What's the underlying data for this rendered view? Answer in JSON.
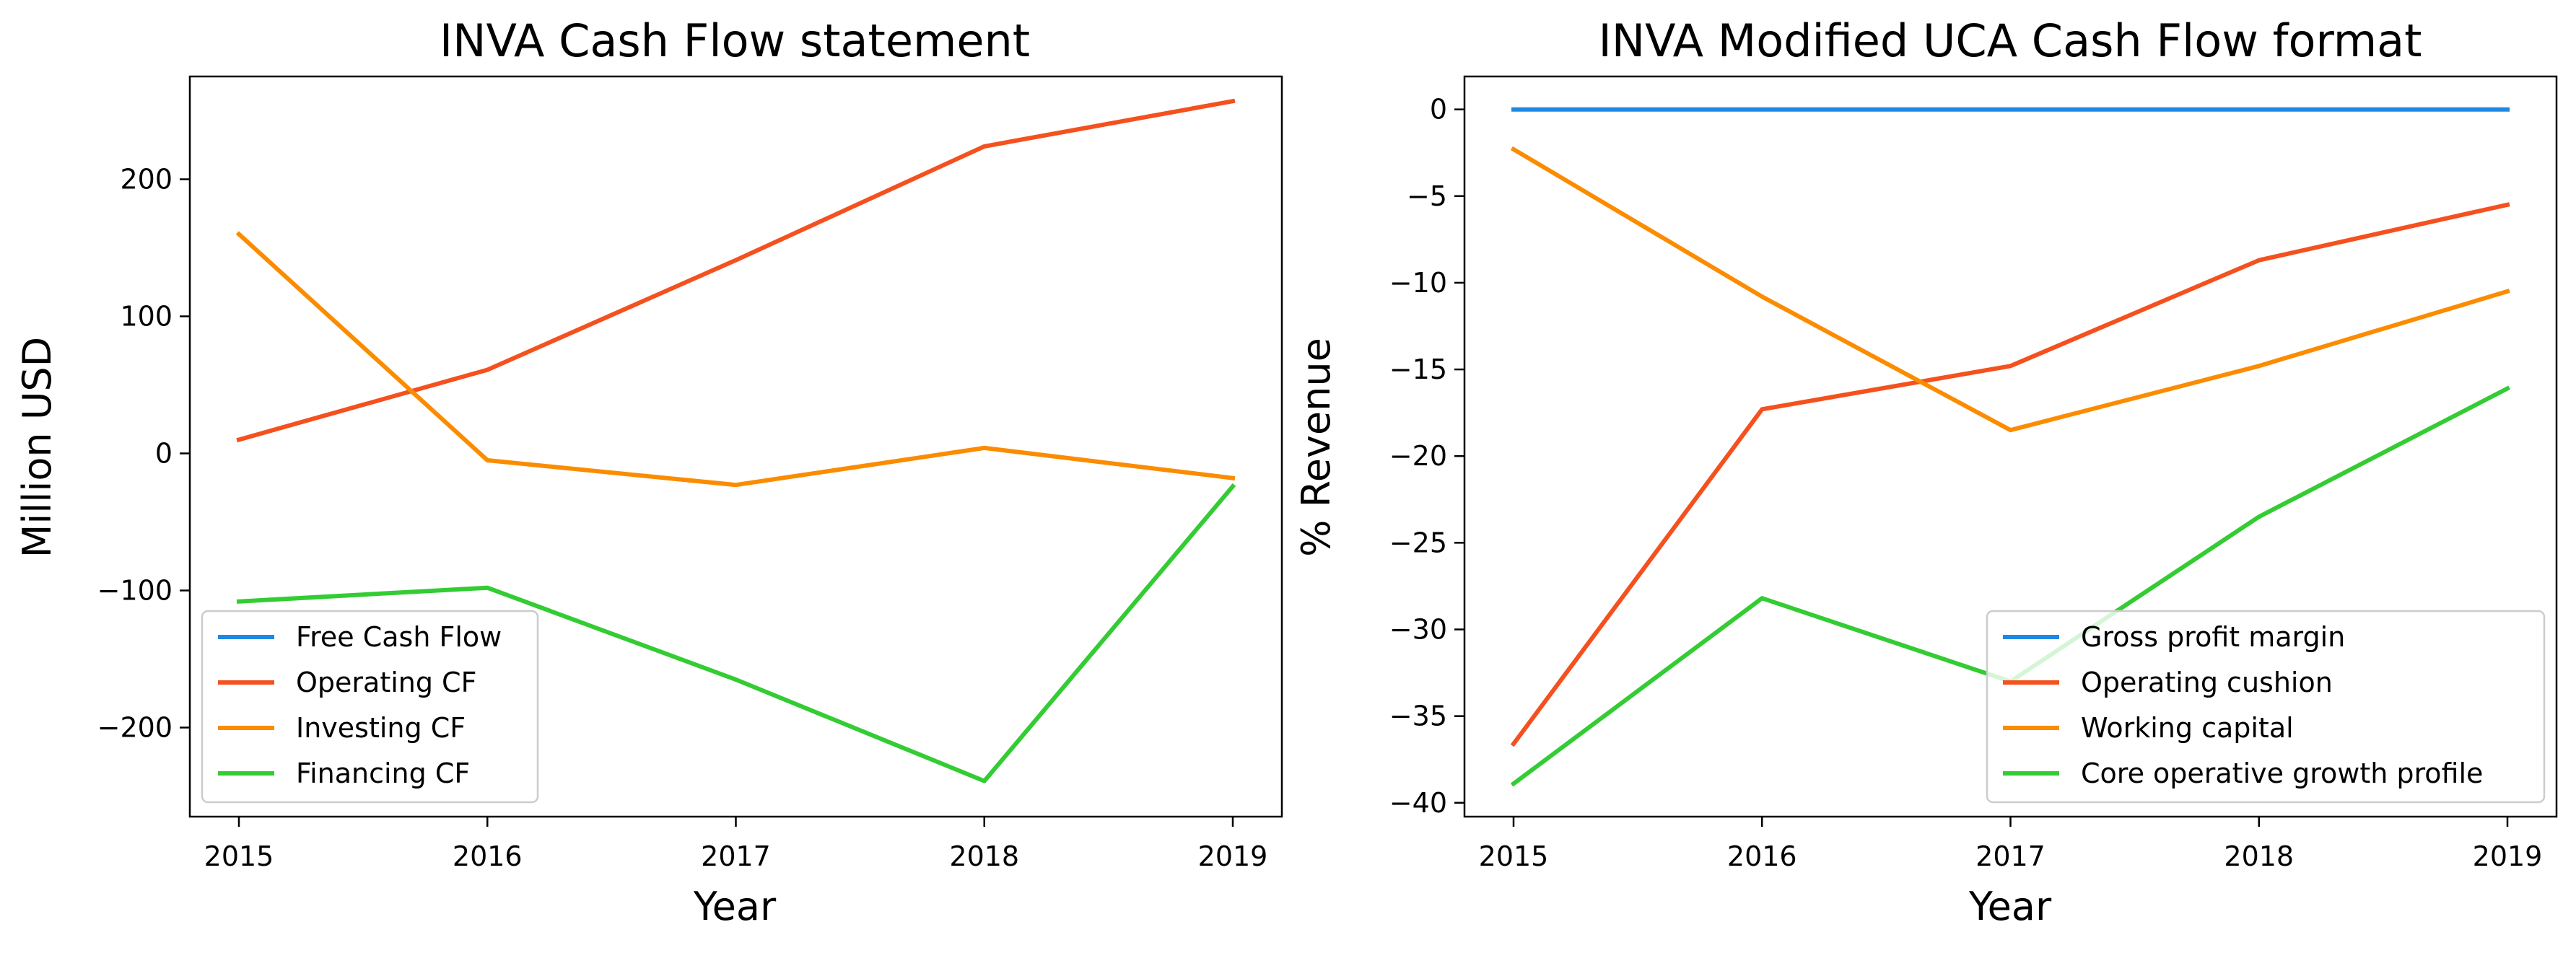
{
  "chart_data": [
    {
      "type": "line",
      "title": "INVA Cash Flow statement",
      "xlabel": "Year",
      "ylabel": "Million USD",
      "x": [
        "2015",
        "2016",
        "2017",
        "2018",
        "2019"
      ],
      "ylim": [
        -265,
        275
      ],
      "yticks": [
        -200,
        -100,
        0,
        100,
        200
      ],
      "yticklabels": [
        "−200",
        "−100",
        "0",
        "100",
        "200"
      ],
      "legend_position": "lower-left",
      "series": [
        {
          "name": "Free Cash Flow",
          "color": "#1f88e5",
          "values": [
            null,
            null,
            null,
            null,
            null
          ]
        },
        {
          "name": "Operating CF",
          "color": "#f4511e",
          "values": [
            10,
            61,
            141,
            224,
            257
          ]
        },
        {
          "name": "Investing CF",
          "color": "#fb8c00",
          "values": [
            160,
            -5,
            -23,
            4,
            -18
          ]
        },
        {
          "name": "Financing CF",
          "color": "#33cc33",
          "values": [
            -108,
            -98,
            -165,
            -239,
            -24
          ]
        }
      ]
    },
    {
      "type": "line",
      "title": "INVA Modified UCA Cash Flow format",
      "xlabel": "Year",
      "ylabel": "% Revenue",
      "x": [
        "2015",
        "2016",
        "2017",
        "2018",
        "2019"
      ],
      "ylim": [
        -40.8,
        1.9
      ],
      "yticks": [
        0,
        -5,
        -10,
        -15,
        -20,
        -25,
        -30,
        -35,
        -40
      ],
      "yticklabels": [
        "0",
        "−5",
        "−10",
        "−15",
        "−20",
        "−25",
        "−30",
        "−35",
        "−40"
      ],
      "legend_position": "lower-right",
      "series": [
        {
          "name": "Gross profit margin",
          "color": "#1f88e5",
          "values": [
            0,
            0,
            0,
            0,
            0
          ]
        },
        {
          "name": "Operating cushion",
          "color": "#f4511e",
          "values": [
            -36.6,
            -17.3,
            -14.8,
            -8.7,
            -5.5
          ]
        },
        {
          "name": "Working capital",
          "color": "#fb8c00",
          "values": [
            -2.3,
            -10.8,
            -18.5,
            -14.8,
            -10.5
          ]
        },
        {
          "name": "Core operative growth profile",
          "color": "#33cc33",
          "values": [
            -38.9,
            -28.2,
            -33.0,
            -23.5,
            -16.1
          ]
        }
      ]
    }
  ]
}
